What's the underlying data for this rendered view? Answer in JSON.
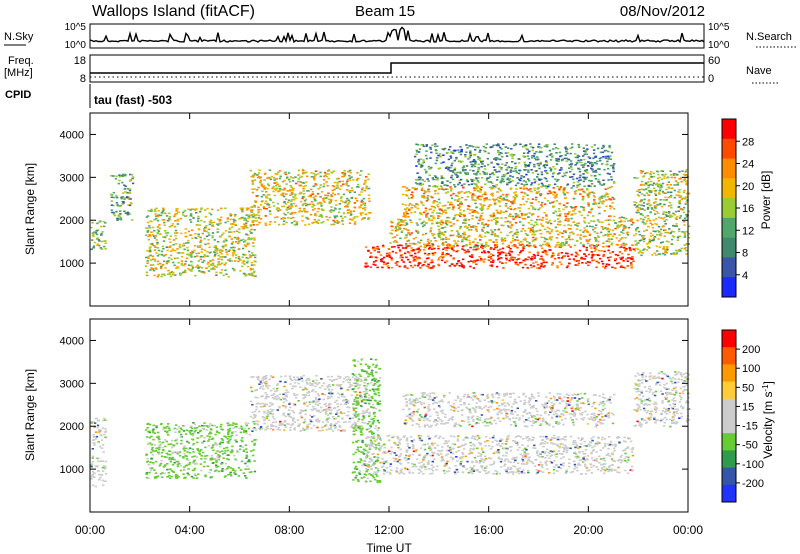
{
  "header": {
    "station": "Wallops Island (fitACF)",
    "beam": "Beam 15",
    "date": "08/Nov/2012"
  },
  "sky_panel": {
    "left_label": "N.Sky",
    "right_label": "N.Search",
    "ticks": [
      "10^5",
      "10^0"
    ]
  },
  "freq_panel": {
    "left_label_top": "Freq.",
    "left_label_unit": "[MHz]",
    "left_ticks": [
      "18",
      "8"
    ],
    "right_label": "Nave",
    "right_ticks": [
      "60",
      "0"
    ]
  },
  "cpid_panel": {
    "label": "CPID",
    "text": "tau (fast) -503"
  },
  "colors": {
    "power": [
      "#1a2bff",
      "#3a56a8",
      "#3f8a6e",
      "#4fa86a",
      "#99cc33",
      "#f2b600",
      "#ff8c00",
      "#ff4a00",
      "#ff0000"
    ],
    "velocity": [
      "#ff0000",
      "#ff5a00",
      "#ff9900",
      "#ffcc33",
      "#cccccc",
      "#cccccc",
      "#66cc33",
      "#2e9c4a",
      "#3355aa",
      "#2233ff"
    ]
  },
  "chart_data": [
    {
      "type": "heatmap",
      "name": "power",
      "ylabel": "Slant Range [km]",
      "yticks": [
        "1000",
        "2000",
        "3000",
        "4000"
      ],
      "ylim": [
        0,
        4500
      ],
      "colorbar_label": "Power [dB]",
      "colorbar_ticks": [
        "4",
        "8",
        "12",
        "16",
        "20",
        "24",
        "28"
      ],
      "colorbar_range": [
        0,
        32
      ],
      "regions": [
        {
          "t0": 0.0,
          "t1": 0.6,
          "r0": 1300,
          "r1": 2000,
          "level": 0.45
        },
        {
          "t0": 0.8,
          "t1": 1.7,
          "r0": 2000,
          "r1": 3100,
          "level": 0.35
        },
        {
          "t0": 2.2,
          "t1": 6.6,
          "r0": 700,
          "r1": 2300,
          "level": 0.55
        },
        {
          "t0": 6.4,
          "t1": 11.2,
          "r0": 1900,
          "r1": 3200,
          "level": 0.6
        },
        {
          "t0": 11.0,
          "t1": 21.8,
          "r0": 900,
          "r1": 1450,
          "level": 0.95
        },
        {
          "t0": 12.0,
          "t1": 21.8,
          "r0": 1400,
          "r1": 2100,
          "level": 0.6
        },
        {
          "t0": 12.5,
          "t1": 21.0,
          "r0": 2100,
          "r1": 2800,
          "level": 0.65
        },
        {
          "t0": 13.0,
          "t1": 21.0,
          "r0": 2800,
          "r1": 3800,
          "level": 0.3
        },
        {
          "t0": 21.8,
          "t1": 24.0,
          "r0": 1200,
          "r1": 3200,
          "level": 0.5
        }
      ]
    },
    {
      "type": "heatmap",
      "name": "velocity",
      "ylabel": "Slant Range [km]",
      "yticks": [
        "1000",
        "2000",
        "3000",
        "4000"
      ],
      "ylim": [
        0,
        4500
      ],
      "colorbar_label": "Velocity [m s^-1]",
      "colorbar_ticks": [
        "200",
        "100",
        "50",
        "15",
        "-15",
        "-50",
        "-100",
        "-200"
      ],
      "colorbar_range": [
        -250,
        250
      ],
      "regions": [
        {
          "t0": 0.0,
          "t1": 0.6,
          "r0": 600,
          "r1": 2200,
          "level": 0.5
        },
        {
          "t0": 2.2,
          "t1": 6.6,
          "r0": 800,
          "r1": 2100,
          "level": 0.8
        },
        {
          "t0": 6.4,
          "t1": 11.2,
          "r0": 1900,
          "r1": 3200,
          "level": 0.5
        },
        {
          "t0": 10.5,
          "t1": 11.6,
          "r0": 700,
          "r1": 3600,
          "level": 0.75
        },
        {
          "t0": 11.0,
          "t1": 21.8,
          "r0": 900,
          "r1": 1800,
          "level": 0.5
        },
        {
          "t0": 12.5,
          "t1": 21.0,
          "r0": 2000,
          "r1": 2800,
          "level": 0.5
        },
        {
          "t0": 21.8,
          "t1": 24.0,
          "r0": 2000,
          "r1": 3300,
          "level": 0.5
        }
      ]
    }
  ],
  "time_axis": {
    "xlabel": "Time UT",
    "ticks": [
      "00:00",
      "04:00",
      "08:00",
      "12:00",
      "16:00",
      "20:00",
      "00:00"
    ],
    "range_hours": [
      0,
      24
    ]
  }
}
